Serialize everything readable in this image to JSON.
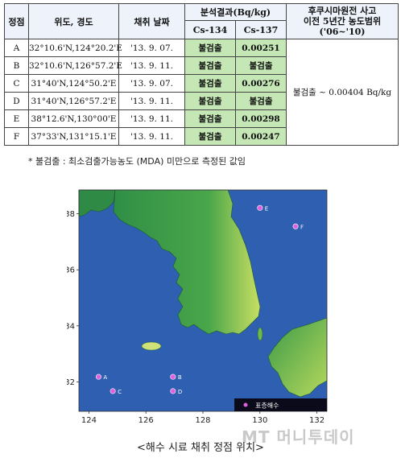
{
  "table": {
    "headers": {
      "station": "정점",
      "latlon": "위도, 경도",
      "date": "채취 날짜",
      "result": "분석결과(Bq/kg)",
      "cs134": "Cs-134",
      "cs137": "Cs-137",
      "range_line1": "후쿠시마원전 사고",
      "range_line2": "이전 5년간 농도범위",
      "range_line3": "('06~'10)"
    },
    "rows": [
      {
        "station": "A",
        "latlon": "32°10.6'N,124°20.2'E",
        "date": "'13. 9. 07.",
        "cs134": "불검출",
        "cs137": "0.00251"
      },
      {
        "station": "B",
        "latlon": "32°10.6'N,126°57.2'E",
        "date": "'13. 9. 11.",
        "cs134": "불검출",
        "cs137": "불검출"
      },
      {
        "station": "C",
        "latlon": "31°40'N,124°50.2'E",
        "date": "'13. 9. 07.",
        "cs134": "불검출",
        "cs137": "0.00276"
      },
      {
        "station": "D",
        "latlon": "31°40'N,126°57.2'E",
        "date": "'13. 9. 11.",
        "cs134": "불검출",
        "cs137": "불검출"
      },
      {
        "station": "E",
        "latlon": "38°12.6'N,130°00'E",
        "date": "'13. 9. 11.",
        "cs134": "불검출",
        "cs137": "0.00298"
      },
      {
        "station": "F",
        "latlon": "37°33'N,131°15.1'E",
        "date": "'13. 9. 11.",
        "cs134": "불검출",
        "cs137": "0.00247"
      }
    ],
    "range_value": "불검출 ~ 0.00404 Bq/kg"
  },
  "footnote": "* 불검출 : 최소검출가능농도 (MDA) 미만으로 측정된 값임",
  "map": {
    "y_ticks": [
      "38",
      "36",
      "34",
      "32"
    ],
    "x_ticks": [
      "124",
      "126",
      "128",
      "130",
      "132"
    ],
    "stations": [
      {
        "label": "A",
        "lon": 124.34,
        "lat": 32.18
      },
      {
        "label": "B",
        "lon": 126.95,
        "lat": 32.18
      },
      {
        "label": "C",
        "lon": 124.84,
        "lat": 31.67
      },
      {
        "label": "D",
        "lon": 126.95,
        "lat": 31.67
      },
      {
        "label": "E",
        "lon": 130.0,
        "lat": 38.21
      },
      {
        "label": "F",
        "lon": 131.25,
        "lat": 37.55
      }
    ],
    "legend": "표층해수",
    "colors": {
      "sea": "#2f5fb0",
      "land_low": "#2f8f46",
      "land_high": "#d8e86a",
      "marker": "#e060e0"
    }
  },
  "caption": "<해수 시료 채취 정점 위치>",
  "watermark": "MT 머니투데이"
}
